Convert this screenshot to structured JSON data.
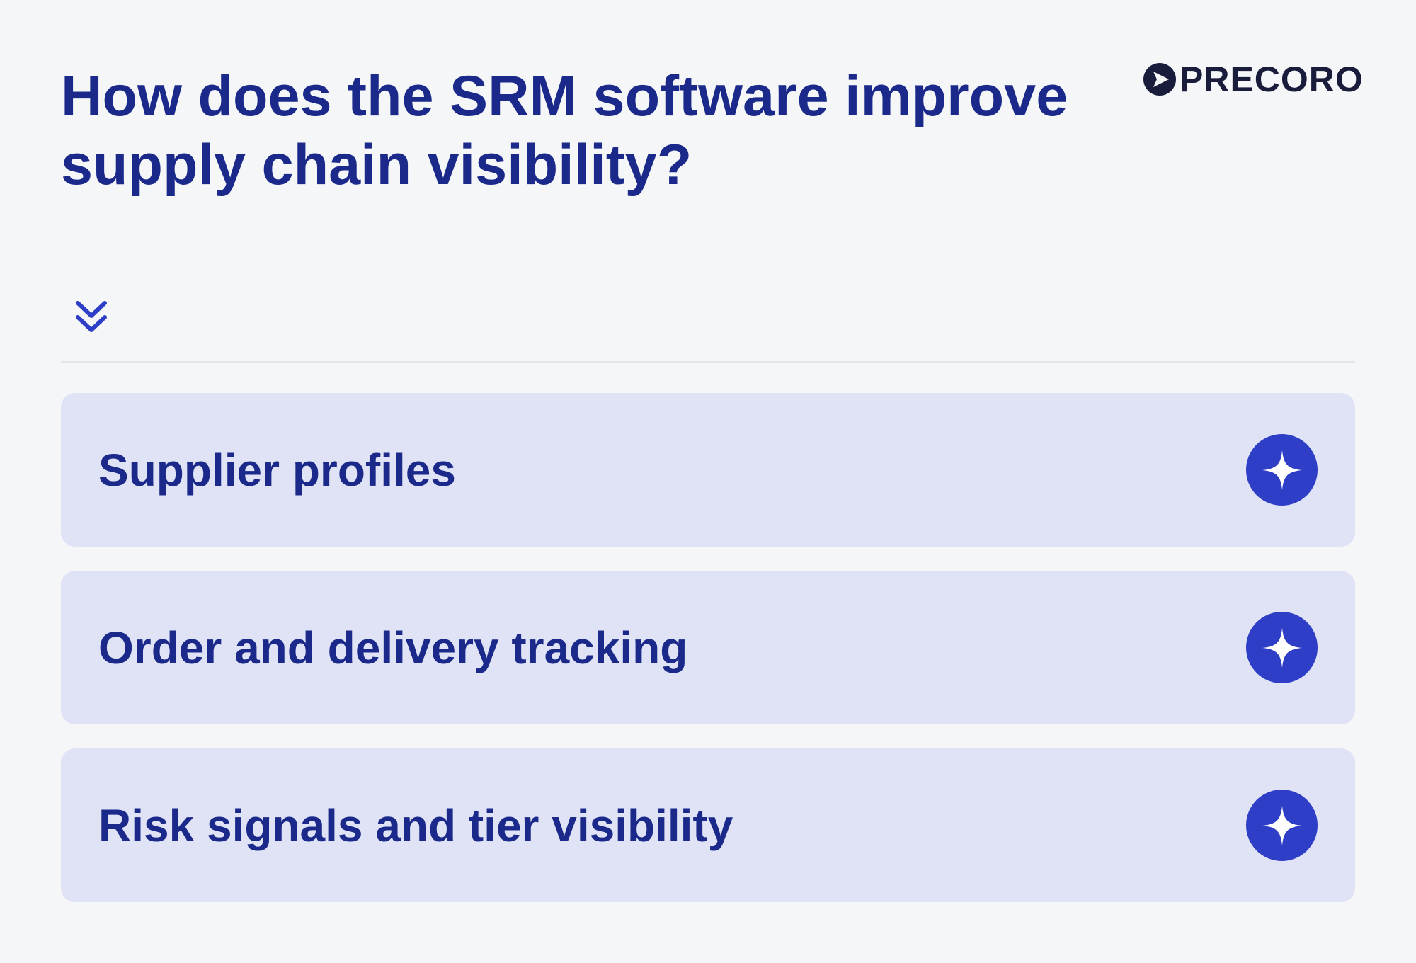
{
  "header": {
    "title": "How does the SRM software improve supply chain visibility?",
    "logo_text": "PRECORO"
  },
  "icons": {
    "logo": "play-arrow-logo-icon",
    "expand": "double-chevron-down-icon",
    "item": "sparkle-icon"
  },
  "colors": {
    "background": "#f4f6f8",
    "title": "#1b2a8a",
    "card": "#dfe3f5",
    "accent": "#2e3ec6",
    "logo": "#1a1c3c"
  },
  "items": [
    {
      "label": "Supplier profiles"
    },
    {
      "label": "Order and delivery tracking"
    },
    {
      "label": "Risk signals and tier visibility"
    }
  ]
}
